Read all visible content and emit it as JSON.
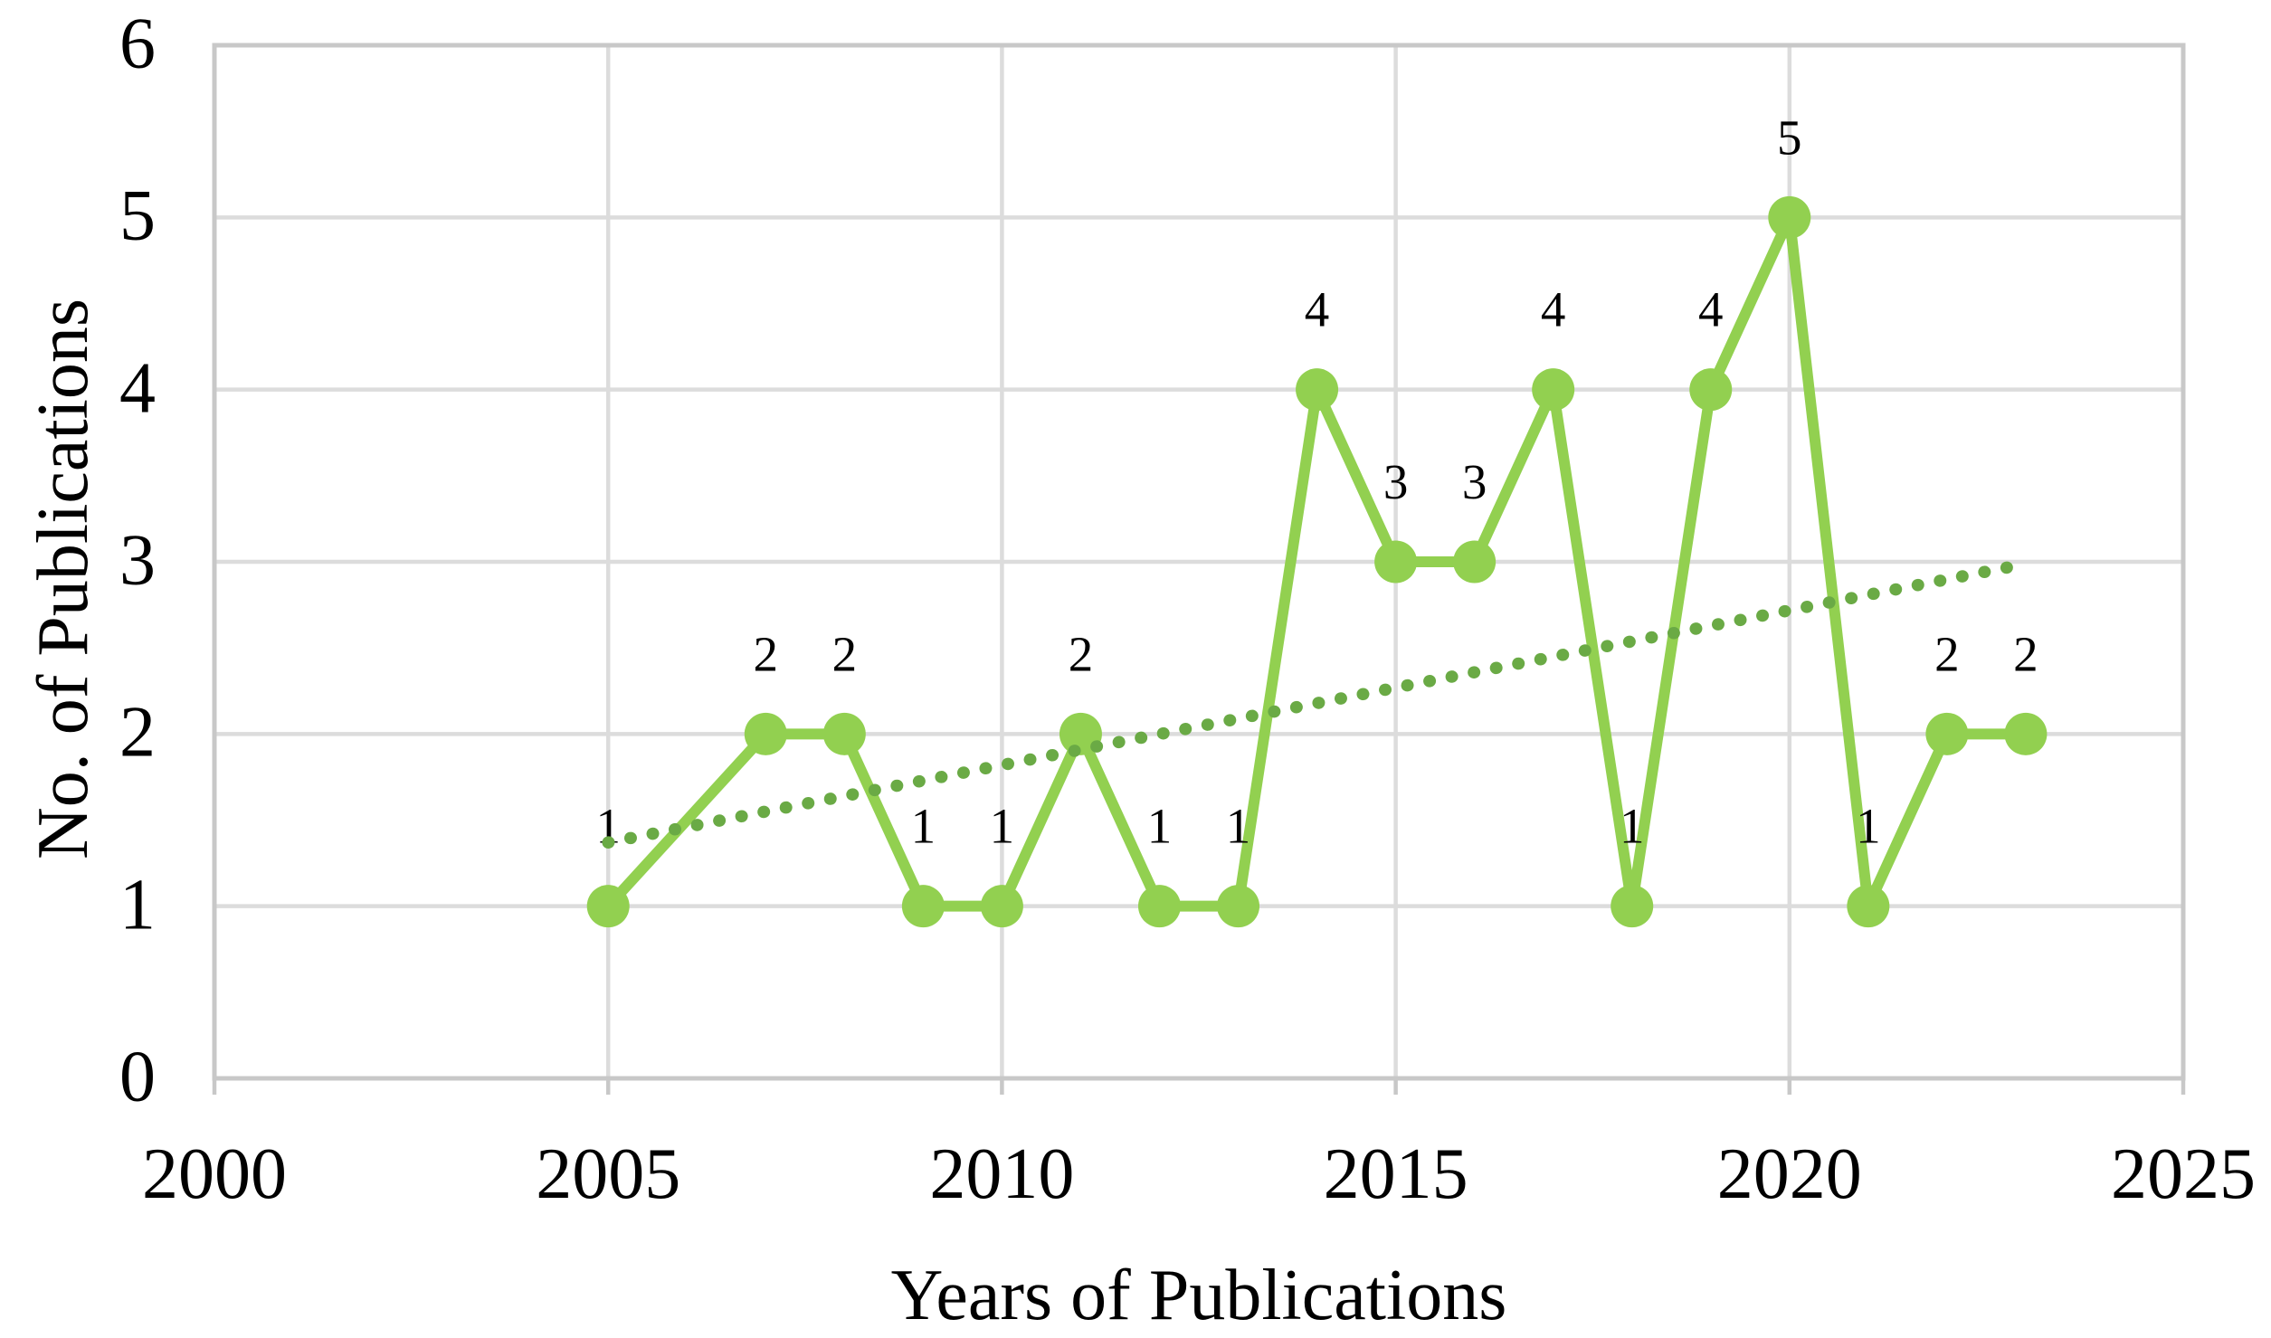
{
  "chart_data": {
    "type": "line",
    "title": "",
    "xlabel": "Years of Publications",
    "ylabel": "No. of Publications",
    "x": [
      2005,
      2007,
      2008,
      2009,
      2010,
      2011,
      2012,
      2013,
      2014,
      2015,
      2016,
      2017,
      2018,
      2019,
      2020,
      2021,
      2022,
      2023
    ],
    "series": [
      {
        "name": "No. of Publications",
        "values": [
          1,
          2,
          2,
          1,
          1,
          2,
          1,
          1,
          4,
          3,
          3,
          4,
          1,
          4,
          5,
          1,
          2,
          2
        ]
      }
    ],
    "data_labels": [
      "1",
      "2",
      "2",
      "1",
      "1",
      "2",
      "1",
      "1",
      "4",
      "3",
      "3",
      "4",
      "1",
      "4",
      "5",
      "1",
      "2",
      "2"
    ],
    "xlim": [
      2000,
      2025
    ],
    "ylim": [
      0,
      6
    ],
    "xticks": [
      "2000",
      "2005",
      "2010",
      "2015",
      "2020",
      "2025"
    ],
    "yticks": [
      "0",
      "1",
      "2",
      "3",
      "4",
      "5",
      "6"
    ],
    "grid": true,
    "legend": "none",
    "trendline": {
      "style": "dotted",
      "start": {
        "x": 2005,
        "y": 1.37
      },
      "end": {
        "x": 2022.8,
        "y": 2.97
      }
    },
    "colors": {
      "series": "#92d050",
      "trendline": "#6aaa45",
      "gridline": "#dcdcdc",
      "border": "#c8c8c8",
      "text": "#000000",
      "background": "#ffffff"
    }
  }
}
